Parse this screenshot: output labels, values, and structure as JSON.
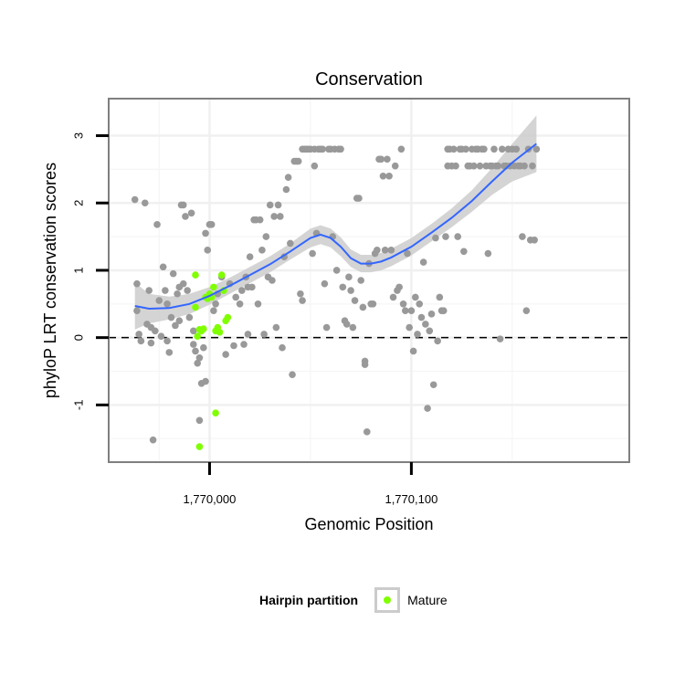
{
  "chart_data": {
    "type": "scatter",
    "title": "Conservation",
    "xlabel": "Genomic Position",
    "ylabel": "phyloP LRT conservation scores",
    "xlim": [
      1769950,
      1770208
    ],
    "ylim": [
      -1.85,
      3.55
    ],
    "x_ticks": [
      1770000,
      1770100
    ],
    "x_tick_labels": [
      "1,770,000",
      "1,770,100"
    ],
    "y_ticks": [
      -1,
      0,
      1,
      2,
      3
    ],
    "y_tick_labels": [
      "-1",
      "0",
      "1",
      "2",
      "3"
    ],
    "reference_line": {
      "y": 0,
      "style": "dashed"
    },
    "grid": true,
    "legend_title": "Hairpin partition",
    "legend_position": "bottom",
    "colors": {
      "other": "#999999",
      "mature": "#7fff00",
      "smooth": "#3366ff",
      "ribbon": "#cccccc"
    },
    "series": [
      {
        "name": "",
        "color": "#999999",
        "points": [
          [
            1769963,
            2.05
          ],
          [
            1769964,
            0.8
          ],
          [
            1769964,
            0.4
          ],
          [
            1769965,
            0.05
          ],
          [
            1769966,
            -0.05
          ],
          [
            1769968,
            2.0
          ],
          [
            1769969,
            0.2
          ],
          [
            1769970,
            0.7
          ],
          [
            1769971,
            0.15
          ],
          [
            1769971,
            -0.08
          ],
          [
            1769972,
            -1.52
          ],
          [
            1769973,
            0.1
          ],
          [
            1769974,
            1.68
          ],
          [
            1769975,
            0.55
          ],
          [
            1769976,
            0.02
          ],
          [
            1769977,
            1.05
          ],
          [
            1769978,
            0.7
          ],
          [
            1769979,
            0.5
          ],
          [
            1769979,
            -0.05
          ],
          [
            1769980,
            -0.22
          ],
          [
            1769981,
            0.3
          ],
          [
            1769982,
            0.95
          ],
          [
            1769983,
            0.18
          ],
          [
            1769984,
            0.65
          ],
          [
            1769985,
            0.75
          ],
          [
            1769985,
            0.25
          ],
          [
            1769986,
            1.97
          ],
          [
            1769987,
            1.97
          ],
          [
            1769987,
            0.8
          ],
          [
            1769988,
            1.8
          ],
          [
            1769989,
            0.7
          ],
          [
            1769990,
            0.3
          ],
          [
            1769991,
            1.85
          ],
          [
            1769992,
            -0.1
          ],
          [
            1769992,
            0.1
          ],
          [
            1769993,
            -0.2
          ],
          [
            1769994,
            -0.38
          ],
          [
            1769995,
            -1.23
          ],
          [
            1769995,
            -0.3
          ],
          [
            1769996,
            -0.68
          ],
          [
            1769997,
            -0.15
          ],
          [
            1769998,
            1.55
          ],
          [
            1769998,
            -0.65
          ],
          [
            1769999,
            1.3
          ],
          [
            1770000,
            1.68
          ],
          [
            1770001,
            1.68
          ],
          [
            1770002,
            0.4
          ],
          [
            1770003,
            0.5
          ],
          [
            1770004,
            0.65
          ],
          [
            1770006,
            0.9
          ],
          [
            1770008,
            -0.25
          ],
          [
            1770010,
            0.8
          ],
          [
            1770012,
            -0.12
          ],
          [
            1770013,
            0.6
          ],
          [
            1770015,
            0.5
          ],
          [
            1770016,
            0.7
          ],
          [
            1770017,
            -0.1
          ],
          [
            1770018,
            0.9
          ],
          [
            1770019,
            0.05
          ],
          [
            1770019,
            0.75
          ],
          [
            1770020,
            1.2
          ],
          [
            1770021,
            0.75
          ],
          [
            1770022,
            1.75
          ],
          [
            1770023,
            1.75
          ],
          [
            1770024,
            0.5
          ],
          [
            1770025,
            1.75
          ],
          [
            1770026,
            1.3
          ],
          [
            1770027,
            0.05
          ],
          [
            1770028,
            1.5
          ],
          [
            1770029,
            0.9
          ],
          [
            1770030,
            1.97
          ],
          [
            1770031,
            0.85
          ],
          [
            1770032,
            1.8
          ],
          [
            1770033,
            0.15
          ],
          [
            1770034,
            1.97
          ],
          [
            1770035,
            1.8
          ],
          [
            1770036,
            -0.15
          ],
          [
            1770037,
            1.2
          ],
          [
            1770038,
            2.2
          ],
          [
            1770039,
            2.38
          ],
          [
            1770040,
            1.4
          ],
          [
            1770041,
            -0.55
          ],
          [
            1770042,
            2.62
          ],
          [
            1770043,
            2.62
          ],
          [
            1770044,
            2.62
          ],
          [
            1770045,
            0.65
          ],
          [
            1770046,
            2.8
          ],
          [
            1770046,
            0.55
          ],
          [
            1770047,
            2.8
          ],
          [
            1770048,
            2.8
          ],
          [
            1770049,
            2.8
          ],
          [
            1770050,
            2.8
          ],
          [
            1770051,
            1.25
          ],
          [
            1770052,
            2.8
          ],
          [
            1770052,
            2.55
          ],
          [
            1770053,
            1.55
          ],
          [
            1770054,
            2.8
          ],
          [
            1770055,
            2.8
          ],
          [
            1770056,
            2.8
          ],
          [
            1770057,
            0.8
          ],
          [
            1770058,
            0.15
          ],
          [
            1770059,
            2.8
          ],
          [
            1770060,
            2.8
          ],
          [
            1770061,
            1.5
          ],
          [
            1770062,
            2.8
          ],
          [
            1770063,
            1.0
          ],
          [
            1770064,
            2.8
          ],
          [
            1770065,
            2.8
          ],
          [
            1770066,
            0.75
          ],
          [
            1770067,
            0.25
          ],
          [
            1770068,
            0.2
          ],
          [
            1770069,
            0.9
          ],
          [
            1770070,
            0.7
          ],
          [
            1770071,
            0.15
          ],
          [
            1770072,
            0.55
          ],
          [
            1770073,
            2.07
          ],
          [
            1770074,
            2.07
          ],
          [
            1770075,
            0.85
          ],
          [
            1770076,
            0.45
          ],
          [
            1770077,
            -0.4
          ],
          [
            1770077,
            -0.35
          ],
          [
            1770078,
            -1.4
          ],
          [
            1770079,
            1.1
          ],
          [
            1770080,
            0.5
          ],
          [
            1770081,
            0.5
          ],
          [
            1770082,
            1.25
          ],
          [
            1770083,
            1.3
          ],
          [
            1770084,
            2.65
          ],
          [
            1770085,
            2.65
          ],
          [
            1770086,
            2.4
          ],
          [
            1770087,
            1.3
          ],
          [
            1770088,
            2.65
          ],
          [
            1770089,
            2.4
          ],
          [
            1770090,
            1.3
          ],
          [
            1770091,
            0.6
          ],
          [
            1770092,
            2.55
          ],
          [
            1770093,
            0.7
          ],
          [
            1770094,
            0.75
          ],
          [
            1770095,
            2.8
          ],
          [
            1770096,
            0.5
          ],
          [
            1770097,
            0.4
          ],
          [
            1770098,
            1.25
          ],
          [
            1770099,
            0.15
          ],
          [
            1770100,
            0.4
          ],
          [
            1770101,
            -0.2
          ],
          [
            1770102,
            0.6
          ],
          [
            1770103,
            0.05
          ],
          [
            1770104,
            0.5
          ],
          [
            1770105,
            0.3
          ],
          [
            1770106,
            1.12
          ],
          [
            1770107,
            0.2
          ],
          [
            1770108,
            -1.05
          ],
          [
            1770109,
            0.1
          ],
          [
            1770110,
            0.35
          ],
          [
            1770111,
            -0.7
          ],
          [
            1770112,
            1.48
          ],
          [
            1770113,
            -0.05
          ],
          [
            1770114,
            0.6
          ],
          [
            1770115,
            0.4
          ],
          [
            1770116,
            0.4
          ],
          [
            1770117,
            1.5
          ],
          [
            1770118,
            2.8
          ],
          [
            1770118,
            2.55
          ],
          [
            1770119,
            2.8
          ],
          [
            1770120,
            2.55
          ],
          [
            1770121,
            2.8
          ],
          [
            1770122,
            2.55
          ],
          [
            1770123,
            1.5
          ],
          [
            1770124,
            2.8
          ],
          [
            1770125,
            2.8
          ],
          [
            1770126,
            1.28
          ],
          [
            1770127,
            2.8
          ],
          [
            1770128,
            2.55
          ],
          [
            1770129,
            2.55
          ],
          [
            1770130,
            2.8
          ],
          [
            1770131,
            2.55
          ],
          [
            1770132,
            2.8
          ],
          [
            1770133,
            2.8
          ],
          [
            1770134,
            2.55
          ],
          [
            1770135,
            2.8
          ],
          [
            1770136,
            2.8
          ],
          [
            1770137,
            2.55
          ],
          [
            1770138,
            1.25
          ],
          [
            1770139,
            2.55
          ],
          [
            1770140,
            2.55
          ],
          [
            1770141,
            2.8
          ],
          [
            1770142,
            2.55
          ],
          [
            1770143,
            2.55
          ],
          [
            1770144,
            -0.02
          ],
          [
            1770145,
            2.8
          ],
          [
            1770146,
            2.55
          ],
          [
            1770147,
            2.55
          ],
          [
            1770148,
            2.8
          ],
          [
            1770149,
            2.55
          ],
          [
            1770150,
            2.8
          ],
          [
            1770151,
            2.55
          ],
          [
            1770152,
            2.8
          ],
          [
            1770153,
            2.55
          ],
          [
            1770154,
            2.55
          ],
          [
            1770155,
            1.5
          ],
          [
            1770156,
            2.55
          ],
          [
            1770157,
            0.4
          ],
          [
            1770158,
            2.8
          ],
          [
            1770159,
            1.45
          ],
          [
            1770160,
            2.55
          ],
          [
            1770161,
            1.45
          ],
          [
            1770162,
            2.8
          ]
        ]
      },
      {
        "name": "Mature",
        "color": "#7fff00",
        "points": [
          [
            1769993,
            0.93
          ],
          [
            1769993,
            0.45
          ],
          [
            1769994,
            0.02
          ],
          [
            1769995,
            0.12
          ],
          [
            1769996,
            0.1
          ],
          [
            1769997,
            0.13
          ],
          [
            1769998,
            0.6
          ],
          [
            1769999,
            0.58
          ],
          [
            1770000,
            0.65
          ],
          [
            1770001,
            0.6
          ],
          [
            1770002,
            0.75
          ],
          [
            1770003,
            0.1
          ],
          [
            1770004,
            0.15
          ],
          [
            1770005,
            0.08
          ],
          [
            1770006,
            0.93
          ],
          [
            1770007,
            0.7
          ],
          [
            1770008,
            0.25
          ],
          [
            1770009,
            0.3
          ],
          [
            1769995,
            -1.62
          ],
          [
            1770003,
            -1.12
          ]
        ]
      }
    ],
    "smooth": {
      "x": [
        1769963,
        1769970,
        1769980,
        1769990,
        1770000,
        1770010,
        1770020,
        1770030,
        1770040,
        1770050,
        1770055,
        1770060,
        1770065,
        1770070,
        1770075,
        1770080,
        1770085,
        1770090,
        1770100,
        1770110,
        1770120,
        1770130,
        1770140,
        1770150,
        1770162
      ],
      "y": [
        0.47,
        0.43,
        0.44,
        0.5,
        0.62,
        0.77,
        0.93,
        1.09,
        1.28,
        1.48,
        1.53,
        1.48,
        1.35,
        1.18,
        1.1,
        1.1,
        1.13,
        1.19,
        1.35,
        1.56,
        1.78,
        2.03,
        2.32,
        2.6,
        2.88
      ],
      "se": [
        0.35,
        0.22,
        0.17,
        0.15,
        0.13,
        0.12,
        0.12,
        0.12,
        0.12,
        0.14,
        0.14,
        0.14,
        0.14,
        0.13,
        0.13,
        0.13,
        0.13,
        0.13,
        0.13,
        0.13,
        0.14,
        0.16,
        0.2,
        0.28,
        0.42
      ]
    }
  }
}
